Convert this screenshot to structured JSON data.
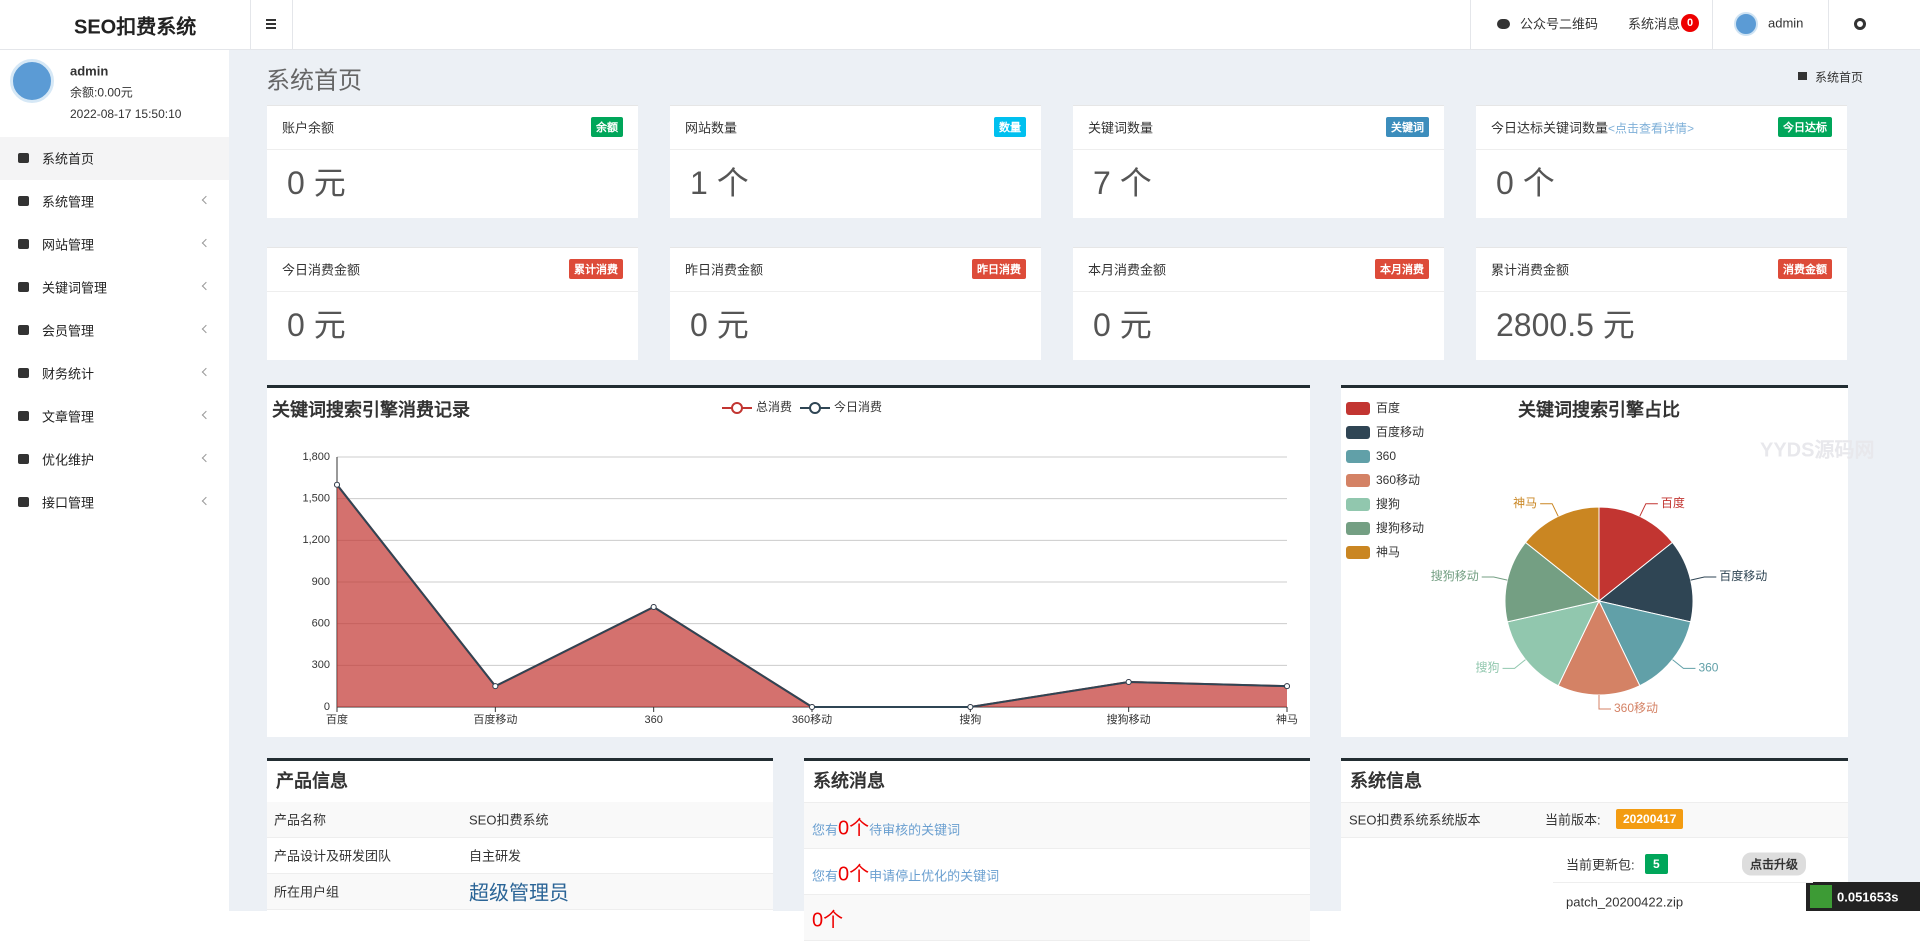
{
  "header": {
    "logo": "SEO扣费系统",
    "nav": [
      "公众号二维码",
      "系统消息",
      "admin"
    ],
    "badge": "0"
  },
  "sidebar": {
    "user": "admin",
    "balance": "余额:0.00元",
    "time": "2022-08-17 15:50:10",
    "menu": [
      "系统首页",
      "系统管理",
      "网站管理",
      "关键词管理",
      "会员管理",
      "财务统计",
      "文章管理",
      "优化维护",
      "接口管理"
    ]
  },
  "page": {
    "title": "系统首页",
    "breadcrumb": "系统首页"
  },
  "cards": [
    {
      "title": "账户余额",
      "badge": "余额",
      "color": "#00a65a",
      "value": "0 元"
    },
    {
      "title": "网站数量",
      "badge": "数量",
      "color": "#00c0ef",
      "value": "1 个"
    },
    {
      "title": "关键词数量",
      "badge": "关键词",
      "color": "#3c8dbc",
      "value": "7 个"
    },
    {
      "title": "今日达标关键词数量",
      "link": "<点击查看详情>",
      "badge": "今日达标",
      "color": "#00a65a",
      "value": "0 个"
    },
    {
      "title": "今日消费金额",
      "badge": "累计消费",
      "color": "#dd4b39",
      "value": "0 元"
    },
    {
      "title": "昨日消费金额",
      "badge": "昨日消费",
      "color": "#dd4b39",
      "value": "0 元"
    },
    {
      "title": "本月消费金额",
      "badge": "本月消费",
      "color": "#dd4b39",
      "value": "0 元"
    },
    {
      "title": "累计消费金额",
      "badge": "消费金额",
      "color": "#dd4b39",
      "value": "2800.5 元"
    }
  ],
  "chart_data": [
    {
      "type": "line",
      "title": "关键词搜索引擎消费记录",
      "stacked": true,
      "categories": [
        "百度",
        "百度移动",
        "360",
        "360移动",
        "搜狗",
        "搜狗移动",
        "神马"
      ],
      "series": [
        {
          "name": "总消费",
          "color": "#c23531",
          "area": true,
          "values": [
            1600,
            150,
            720,
            0,
            0,
            180,
            150
          ]
        },
        {
          "name": "今日消费",
          "color": "#2f4554",
          "values": [
            0,
            0,
            0,
            0,
            0,
            0,
            0
          ]
        }
      ],
      "ylim": [
        0,
        1800
      ],
      "yticks": [
        0,
        300,
        600,
        900,
        {
          "value": 1200,
          "label": "1,200"
        },
        {
          "value": 1500,
          "label": "1,500"
        },
        {
          "value": 1800,
          "label": "1,800"
        }
      ],
      "grid": true
    },
    {
      "type": "pie",
      "title": "关键词搜索引擎占比",
      "categories": [
        "百度",
        "百度移动",
        "360",
        "360移动",
        "搜狗",
        "搜狗移动",
        "神马"
      ],
      "values": [
        1,
        1,
        1,
        1,
        1,
        1,
        1
      ],
      "colors": [
        "#c23531",
        "#2f4554",
        "#61a0a8",
        "#d48265",
        "#91c7ae",
        "#749f83",
        "#ca8622"
      ]
    }
  ],
  "watermark": "YYDS源码网",
  "product": {
    "title": "产品信息",
    "rows": [
      [
        "产品名称",
        "SEO扣费系统"
      ],
      [
        "产品设计及研发团队",
        "自主研发"
      ],
      [
        "所在用户组",
        "超级管理员"
      ]
    ]
  },
  "messages": {
    "title": "系统消息",
    "items": [
      {
        "prefix": "您有",
        "count": "0个",
        "suffix": "待审核的关键词"
      },
      {
        "prefix": "您有",
        "count": "0个",
        "suffix": "申请停止优化的关键词"
      },
      {
        "count": "0个"
      }
    ]
  },
  "sysinfo": {
    "title": "系统信息",
    "version_label": "SEO扣费系统系统版本",
    "current_label": "当前版本:",
    "current": "20200417",
    "update_label": "当前更新包:",
    "update_count": "5",
    "upgrade": "点击升级",
    "patch": "patch_20200422.zip"
  },
  "timer": "0.051653s"
}
